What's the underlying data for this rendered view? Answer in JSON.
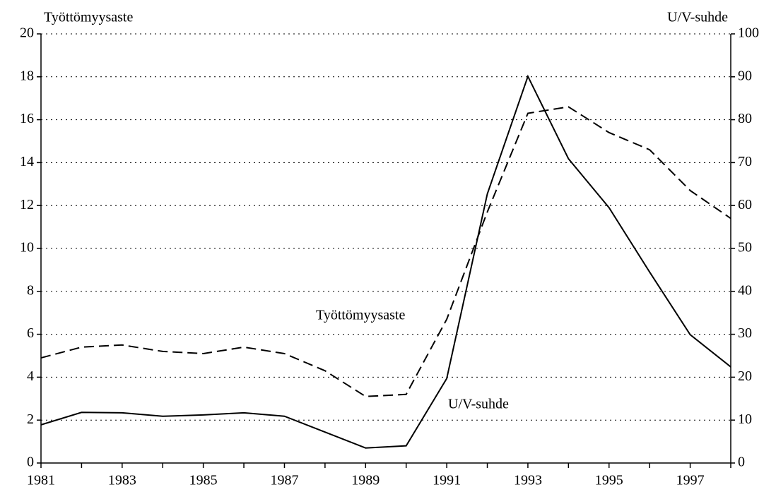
{
  "chart_data": {
    "type": "line",
    "y_label": "Työttömyysaste",
    "y2_label": "U/V-suhde",
    "annotations": [
      "Työttömyysaste",
      "U/V-suhde"
    ],
    "x": [
      1981,
      1982,
      1983,
      1984,
      1985,
      1986,
      1987,
      1988,
      1989,
      1990,
      1991,
      1992,
      1993,
      1994,
      1995,
      1996,
      1997,
      1998
    ],
    "xlim": [
      1981,
      1998
    ],
    "xticks": [
      1981,
      1983,
      1985,
      1987,
      1989,
      1991,
      1993,
      1995,
      1997
    ],
    "ylim": [
      0,
      20
    ],
    "yticks": [
      0,
      2,
      4,
      6,
      8,
      10,
      12,
      14,
      16,
      18,
      20
    ],
    "y2lim": [
      0,
      100
    ],
    "y2ticks": [
      0,
      10,
      20,
      30,
      40,
      50,
      60,
      70,
      80,
      90,
      100
    ],
    "grid": true,
    "series": [
      {
        "name": "Työttömyysaste",
        "color": "#000000",
        "dash": "dashed",
        "values": [
          4.9,
          5.4,
          5.5,
          5.2,
          5.1,
          5.4,
          5.1,
          4.3,
          3.1,
          3.2,
          6.7,
          11.7,
          16.3,
          16.6,
          15.4,
          14.6,
          12.7,
          11.4
        ]
      },
      {
        "name": "U/V-suhde",
        "color": "#000000",
        "dash": "solid",
        "axis": "y2",
        "values": [
          8.9,
          11.8,
          11.7,
          10.9,
          11.2,
          11.7,
          10.9,
          7.2,
          3.5,
          4.0,
          19.7,
          62.7,
          90.1,
          70.9,
          59.5,
          44.5,
          29.9,
          22.4
        ]
      }
    ]
  }
}
